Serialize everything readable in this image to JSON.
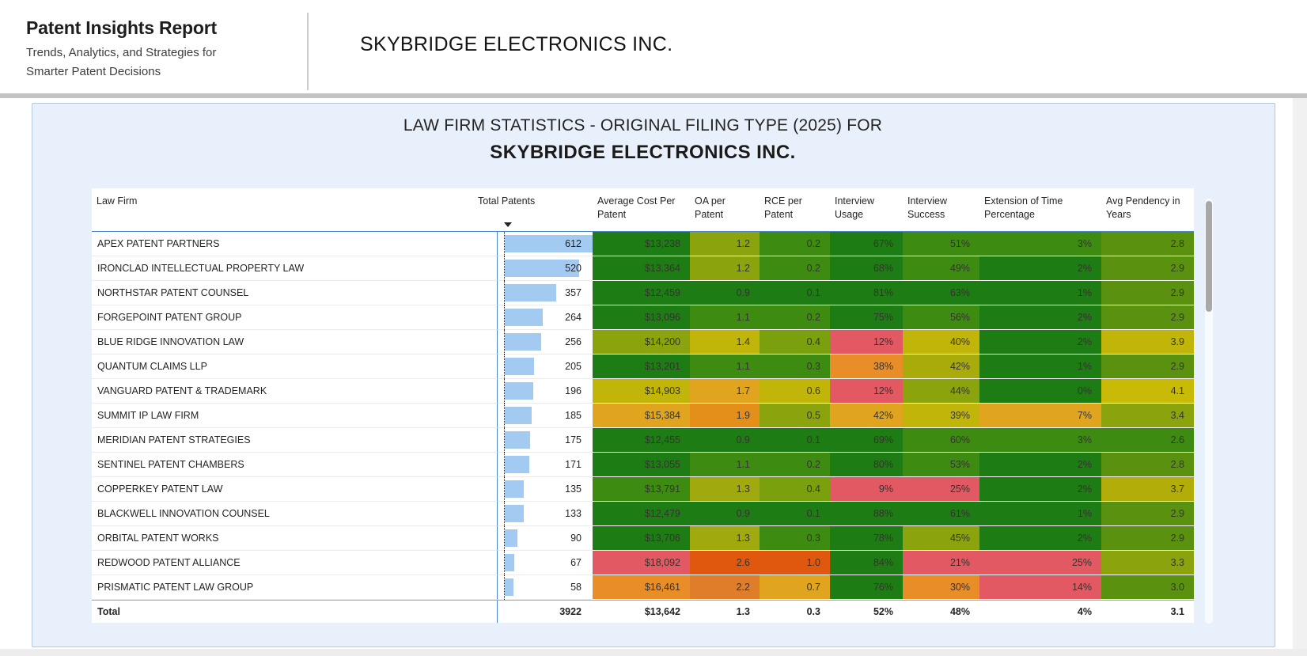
{
  "report_header": {
    "title": "Patent Insights Report",
    "subtitle_line1": "Trends, Analytics, and Strategies for",
    "subtitle_line2": "Smarter Patent Decisions",
    "company": "SKYBRIDGE ELECTRONICS INC."
  },
  "visual": {
    "title_line1": "LAW FIRM STATISTICS - ORIGINAL FILING TYPE (2025) FOR",
    "title_line2": "SKYBRIDGE ELECTRONICS INC."
  },
  "colors": {
    "data_bar": "#a3cbf1",
    "gridline_blue": "#4a86c8",
    "container_bg": "#e8f1fb",
    "dark_green": "#1e7c14",
    "green": "#3d8b10",
    "olive_green": "#5a920f",
    "yellow_green": "#8ba30d",
    "yellow": "#c2b509",
    "amber": "#e0a41e",
    "orange": "#e88d28",
    "deep_orange": "#e0570e",
    "red": "#e25964"
  },
  "table": {
    "columns": [
      "Law Firm",
      "Total Patents",
      "Average Cost Per Patent",
      "OA per Patent",
      "RCE per Patent",
      "Interview Usage",
      "Interview Success",
      "Extension of Time Percentage",
      "Avg Pendency in Years"
    ],
    "sort": {
      "column": "Total Patents",
      "direction": "descending"
    },
    "max_total_patents": 612,
    "rows": [
      {
        "firm": "APEX PATENT PARTNERS",
        "patents": 612,
        "values": [
          "$13,238",
          "1.2",
          "0.2",
          "67%",
          "51%",
          "3%",
          "2.8"
        ],
        "colors": [
          "#1e7c14",
          "#8ba30d",
          "#3d8b10",
          "#1e7c14",
          "#3d8b10",
          "#3d8b10",
          "#5a920f"
        ]
      },
      {
        "firm": "IRONCLAD INTELLECTUAL PROPERTY LAW",
        "patents": 520,
        "values": [
          "$13,364",
          "1.2",
          "0.2",
          "68%",
          "49%",
          "2%",
          "2.9"
        ],
        "colors": [
          "#1e7c14",
          "#8ba30d",
          "#3d8b10",
          "#1e7c14",
          "#3d8b10",
          "#1e7c14",
          "#5a920f"
        ]
      },
      {
        "firm": "NORTHSTAR PATENT COUNSEL",
        "patents": 357,
        "values": [
          "$12,459",
          "0.9",
          "0.1",
          "81%",
          "63%",
          "1%",
          "2.9"
        ],
        "colors": [
          "#1e7c14",
          "#1e7c14",
          "#1e7c14",
          "#1e7c14",
          "#1e7c14",
          "#1e7c14",
          "#5a920f"
        ]
      },
      {
        "firm": "FORGEPOINT PATENT GROUP",
        "patents": 264,
        "values": [
          "$13,096",
          "1.1",
          "0.2",
          "75%",
          "56%",
          "2%",
          "2.9"
        ],
        "colors": [
          "#1e7c14",
          "#3d8b10",
          "#3d8b10",
          "#1e7c14",
          "#3d8b10",
          "#1e7c14",
          "#5a920f"
        ]
      },
      {
        "firm": "BLUE RIDGE INNOVATION LAW",
        "patents": 256,
        "values": [
          "$14,200",
          "1.4",
          "0.4",
          "12%",
          "40%",
          "2%",
          "3.9"
        ],
        "colors": [
          "#8ba30d",
          "#c2b509",
          "#7aa00e",
          "#e25964",
          "#c2b509",
          "#1e7c14",
          "#c2b509"
        ]
      },
      {
        "firm": "QUANTUM CLAIMS LLP",
        "patents": 205,
        "values": [
          "$13,201",
          "1.1",
          "0.3",
          "38%",
          "42%",
          "1%",
          "2.9"
        ],
        "colors": [
          "#1e7c14",
          "#3d8b10",
          "#3d8b10",
          "#e88d28",
          "#a9ab0b",
          "#1e7c14",
          "#5a920f"
        ]
      },
      {
        "firm": "VANGUARD PATENT & TRADEMARK",
        "patents": 196,
        "values": [
          "$14,903",
          "1.7",
          "0.6",
          "12%",
          "44%",
          "0%",
          "4.1"
        ],
        "colors": [
          "#c2b509",
          "#e0a41e",
          "#c2b509",
          "#e25964",
          "#8ba30d",
          "#1e7c14",
          "#c9ba07"
        ]
      },
      {
        "firm": "SUMMIT IP LAW FIRM",
        "patents": 185,
        "values": [
          "$15,384",
          "1.9",
          "0.5",
          "42%",
          "39%",
          "7%",
          "3.4"
        ],
        "colors": [
          "#e0a41e",
          "#e58f1b",
          "#8ba30d",
          "#e0a41e",
          "#c2b509",
          "#e0a41e",
          "#8ba30d"
        ]
      },
      {
        "firm": "MERIDIAN PATENT STRATEGIES",
        "patents": 175,
        "values": [
          "$12,455",
          "0.9",
          "0.1",
          "69%",
          "60%",
          "3%",
          "2.6"
        ],
        "colors": [
          "#1e7c14",
          "#1e7c14",
          "#1e7c14",
          "#1e7c14",
          "#3d8b10",
          "#3d8b10",
          "#3d8b10"
        ]
      },
      {
        "firm": "SENTINEL PATENT CHAMBERS",
        "patents": 171,
        "values": [
          "$13,055",
          "1.1",
          "0.2",
          "80%",
          "53%",
          "2%",
          "2.8"
        ],
        "colors": [
          "#1e7c14",
          "#3d8b10",
          "#3d8b10",
          "#1e7c14",
          "#3d8b10",
          "#1e7c14",
          "#5a920f"
        ]
      },
      {
        "firm": "COPPERKEY PATENT LAW",
        "patents": 135,
        "values": [
          "$13,791",
          "1.3",
          "0.4",
          "9%",
          "25%",
          "2%",
          "3.7"
        ],
        "colors": [
          "#3d8b10",
          "#a0a90d",
          "#7aa00e",
          "#e25964",
          "#e25964",
          "#1e7c14",
          "#b3ad0a"
        ]
      },
      {
        "firm": "BLACKWELL INNOVATION COUNSEL",
        "patents": 133,
        "values": [
          "$12,479",
          "0.9",
          "0.1",
          "88%",
          "61%",
          "1%",
          "2.9"
        ],
        "colors": [
          "#1e7c14",
          "#1e7c14",
          "#1e7c14",
          "#1e7c14",
          "#1e7c14",
          "#1e7c14",
          "#5a920f"
        ]
      },
      {
        "firm": "ORBITAL PATENT WORKS",
        "patents": 90,
        "values": [
          "$13,706",
          "1.3",
          "0.3",
          "78%",
          "45%",
          "2%",
          "2.9"
        ],
        "colors": [
          "#1e7c14",
          "#a0a90d",
          "#3d8b10",
          "#1e7c14",
          "#8ba30d",
          "#1e7c14",
          "#5a920f"
        ]
      },
      {
        "firm": "REDWOOD PATENT ALLIANCE",
        "patents": 67,
        "values": [
          "$18,092",
          "2.6",
          "1.0",
          "84%",
          "21%",
          "25%",
          "3.3"
        ],
        "colors": [
          "#e25964",
          "#e0570e",
          "#e0570e",
          "#1e7c14",
          "#e25964",
          "#e25964",
          "#8ba30d"
        ]
      },
      {
        "firm": "PRISMATIC PATENT LAW GROUP",
        "patents": 58,
        "values": [
          "$16,461",
          "2.2",
          "0.7",
          "76%",
          "30%",
          "14%",
          "3.0"
        ],
        "colors": [
          "#e88d28",
          "#e07d2a",
          "#e0a41e",
          "#1e7c14",
          "#e88d28",
          "#e25964",
          "#5a920f"
        ]
      }
    ],
    "total": {
      "label": "Total",
      "patents": "3922",
      "values": [
        "$13,642",
        "1.3",
        "0.3",
        "52%",
        "48%",
        "4%",
        "3.1"
      ]
    }
  }
}
